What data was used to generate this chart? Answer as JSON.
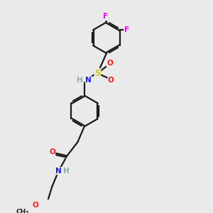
{
  "bg_color": "#eaeaea",
  "bond_color": "#1a1a1a",
  "N_color": "#1919ff",
  "O_color": "#ff1919",
  "S_color": "#cccc00",
  "F_color": "#ee00ee",
  "H_color": "#8fa8a8",
  "lw": 1.6,
  "figsize": [
    3.0,
    3.0
  ],
  "dpi": 100,
  "xlim": [
    -1.5,
    4.5
  ],
  "ylim": [
    -4.5,
    4.5
  ],
  "ring_r": 0.7
}
